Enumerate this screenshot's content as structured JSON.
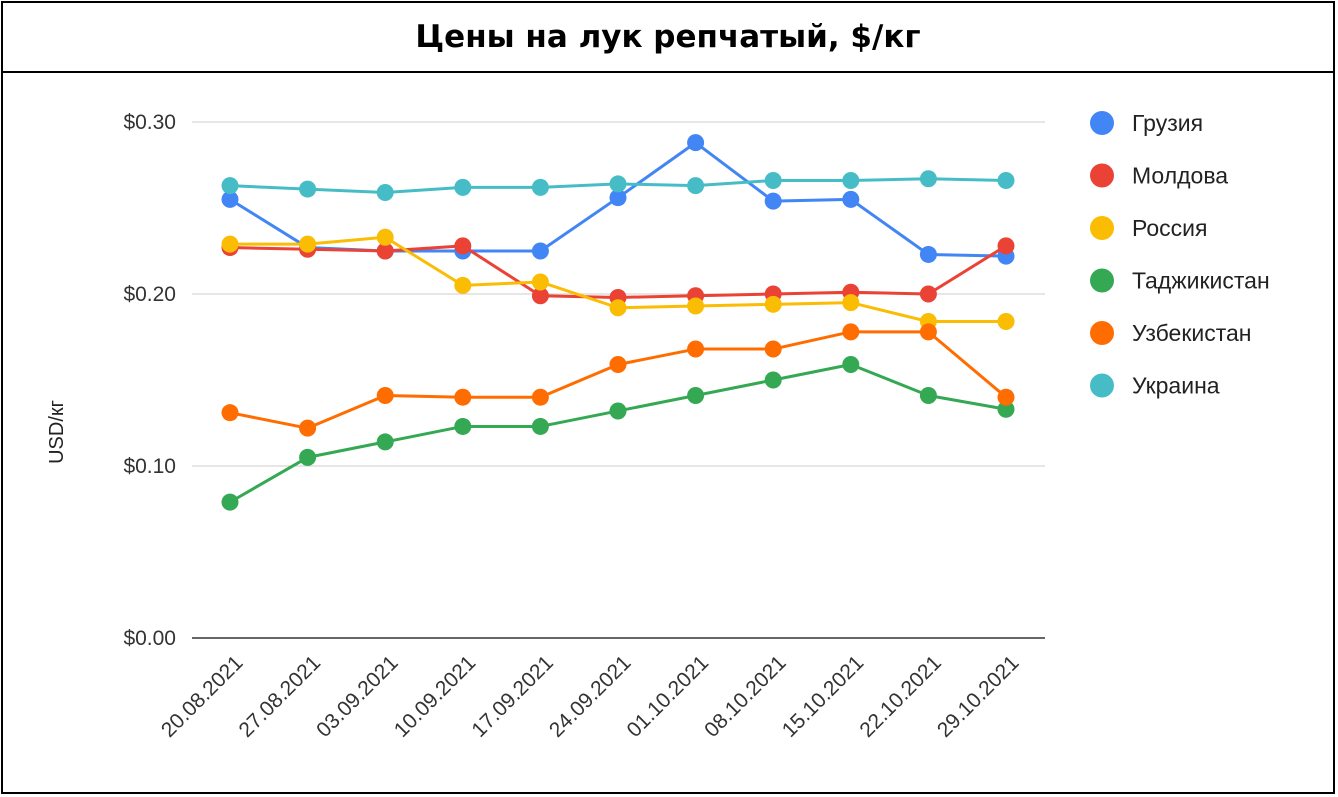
{
  "title": "Цены на лук репчатый, $/кг",
  "chart_data": {
    "type": "line",
    "title": "Цены на лук репчатый, $/кг",
    "xlabel": "",
    "ylabel": "USD/кг",
    "ylim": [
      0,
      0.3
    ],
    "yticks": [
      "$0.00",
      "$0.10",
      "$0.20",
      "$0.30"
    ],
    "ytick_values": [
      0,
      0.1,
      0.2,
      0.3
    ],
    "grid": true,
    "legend_position": "right",
    "categories": [
      "20.08.2021",
      "27.08.2021",
      "03.09.2021",
      "10.09.2021",
      "17.09.2021",
      "24.09.2021",
      "01.10.2021",
      "08.10.2021",
      "15.10.2021",
      "22.10.2021",
      "29.10.2021"
    ],
    "series": [
      {
        "name": "Грузия",
        "color": "#4285F4",
        "values": [
          0.255,
          0.227,
          0.225,
          0.225,
          0.225,
          0.256,
          0.288,
          0.254,
          0.255,
          0.223,
          0.222
        ]
      },
      {
        "name": "Молдова",
        "color": "#EA4335",
        "values": [
          0.227,
          0.226,
          0.225,
          0.228,
          0.199,
          0.198,
          0.199,
          0.2,
          0.201,
          0.2,
          0.228
        ]
      },
      {
        "name": "Россия",
        "color": "#FBBC04",
        "values": [
          0.229,
          0.229,
          0.233,
          0.205,
          0.207,
          0.192,
          0.193,
          0.194,
          0.195,
          0.184,
          0.184
        ]
      },
      {
        "name": "Таджикистан",
        "color": "#34A853",
        "values": [
          0.079,
          0.105,
          0.114,
          0.123,
          0.123,
          0.132,
          0.141,
          0.15,
          0.159,
          0.141,
          0.133
        ]
      },
      {
        "name": "Узбекистан",
        "color": "#FF6D01",
        "values": [
          0.131,
          0.122,
          0.141,
          0.14,
          0.14,
          0.159,
          0.168,
          0.168,
          0.178,
          0.178,
          0.14
        ]
      },
      {
        "name": "Украина",
        "color": "#46BDC6",
        "values": [
          0.263,
          0.261,
          0.259,
          0.262,
          0.262,
          0.264,
          0.263,
          0.266,
          0.266,
          0.267,
          0.266
        ]
      }
    ]
  }
}
